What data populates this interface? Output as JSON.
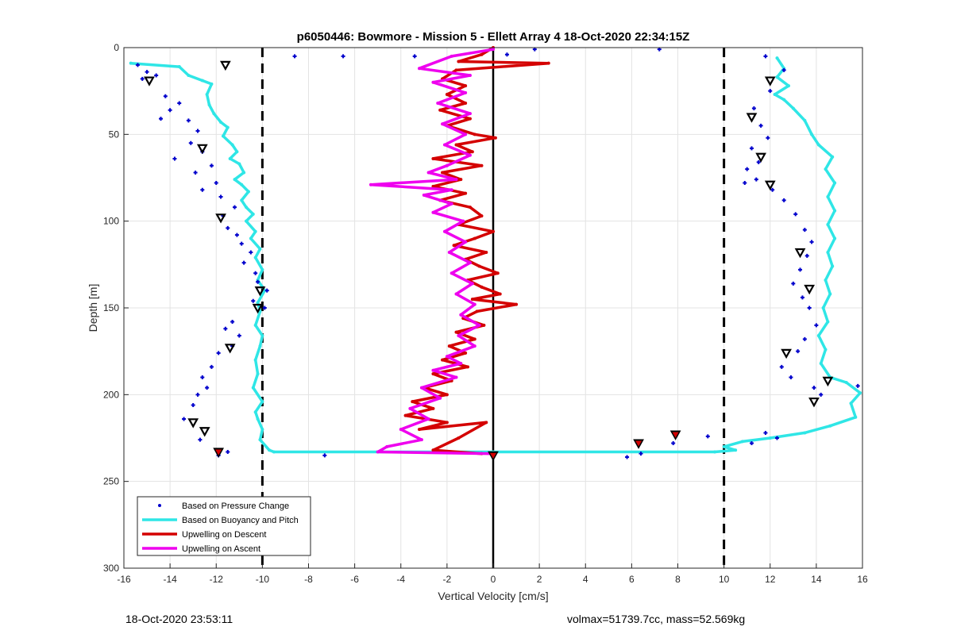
{
  "chart_data": {
    "type": "scatter",
    "title": "p6050446: Bowmore - Mission 5 - Ellett Array 4 18-Oct-2020 22:34:15Z",
    "xlabel": "Vertical Velocity [cm/s]",
    "ylabel": "Depth [m]",
    "xlim": [
      -16,
      16
    ],
    "ylim": [
      0,
      300
    ],
    "y_reversed": true,
    "xticks": [
      -16,
      -14,
      -12,
      -10,
      -8,
      -6,
      -4,
      -2,
      0,
      2,
      4,
      6,
      8,
      10,
      12,
      14,
      16
    ],
    "yticks": [
      0,
      50,
      100,
      150,
      200,
      250,
      300
    ],
    "grid": true,
    "legend_position": "bottom-left",
    "reference_lines": [
      {
        "x": -10,
        "style": "dashed",
        "color": "#000000"
      },
      {
        "x": 10,
        "style": "dashed",
        "color": "#000000"
      },
      {
        "x": 0,
        "style": "solid",
        "color": "#000000"
      }
    ],
    "series": [
      {
        "name": "Based on Pressure Change",
        "kind": "points",
        "color": "#0000cc",
        "points": [
          [
            -15.4,
            10
          ],
          [
            -15.0,
            14
          ],
          [
            -15.2,
            18
          ],
          [
            -14.6,
            16
          ],
          [
            -14.2,
            28
          ],
          [
            -13.6,
            32
          ],
          [
            -14.0,
            36
          ],
          [
            -13.2,
            42
          ],
          [
            -14.4,
            41
          ],
          [
            -12.8,
            48
          ],
          [
            -13.1,
            55
          ],
          [
            -12.6,
            60
          ],
          [
            -13.8,
            64
          ],
          [
            -12.2,
            68
          ],
          [
            -12.9,
            72
          ],
          [
            -12.0,
            78
          ],
          [
            -11.8,
            86
          ],
          [
            -12.6,
            82
          ],
          [
            -11.2,
            92
          ],
          [
            -11.7,
            97
          ],
          [
            -11.5,
            104
          ],
          [
            -11.1,
            108
          ],
          [
            -10.9,
            113
          ],
          [
            -10.5,
            118
          ],
          [
            -10.8,
            124
          ],
          [
            -10.3,
            130
          ],
          [
            -10.2,
            135
          ],
          [
            -9.8,
            140
          ],
          [
            -10.4,
            146
          ],
          [
            -9.9,
            150
          ],
          [
            -11.3,
            158
          ],
          [
            -11.6,
            162
          ],
          [
            -11.0,
            166
          ],
          [
            -11.3,
            172
          ],
          [
            -11.9,
            176
          ],
          [
            -12.2,
            184
          ],
          [
            -12.6,
            190
          ],
          [
            -12.4,
            196
          ],
          [
            -12.8,
            200
          ],
          [
            -13.0,
            206
          ],
          [
            -13.4,
            214
          ],
          [
            -12.7,
            226
          ],
          [
            -11.5,
            233
          ],
          [
            -11.9,
            235
          ],
          [
            -8.6,
            5
          ],
          [
            -6.5,
            5
          ],
          [
            -7.3,
            235
          ],
          [
            -3.4,
            5
          ],
          [
            0.6,
            4
          ],
          [
            1.8,
            1
          ],
          [
            12.6,
            13
          ],
          [
            11.8,
            5
          ],
          [
            12.0,
            25
          ],
          [
            11.3,
            35
          ],
          [
            11.6,
            45
          ],
          [
            11.9,
            52
          ],
          [
            11.2,
            58
          ],
          [
            11.5,
            66
          ],
          [
            11.0,
            70
          ],
          [
            11.4,
            76
          ],
          [
            10.9,
            78
          ],
          [
            12.1,
            82
          ],
          [
            12.6,
            88
          ],
          [
            13.1,
            96
          ],
          [
            13.5,
            105
          ],
          [
            13.8,
            112
          ],
          [
            13.6,
            120
          ],
          [
            13.3,
            128
          ],
          [
            13.0,
            136
          ],
          [
            13.4,
            144
          ],
          [
            13.7,
            150
          ],
          [
            14.0,
            160
          ],
          [
            13.5,
            168
          ],
          [
            13.2,
            175
          ],
          [
            12.5,
            184
          ],
          [
            12.9,
            190
          ],
          [
            13.9,
            196
          ],
          [
            14.2,
            200
          ],
          [
            15.8,
            195
          ],
          [
            11.8,
            222
          ],
          [
            12.3,
            225
          ],
          [
            11.2,
            228
          ],
          [
            9.3,
            224
          ],
          [
            5.8,
            236
          ],
          [
            6.4,
            234
          ],
          [
            7.8,
            228
          ],
          [
            7.2,
            1
          ]
        ]
      },
      {
        "name": "Based on Buoyancy and Pitch",
        "kind": "line",
        "color": "#2fe6e6",
        "points": [
          [
            -15.7,
            9
          ],
          [
            -13.6,
            11
          ],
          [
            -13.2,
            16
          ],
          [
            -12.6,
            19
          ],
          [
            -12.2,
            21
          ],
          [
            -12.4,
            27
          ],
          [
            -12.3,
            33
          ],
          [
            -12.1,
            38
          ],
          [
            -11.8,
            43
          ],
          [
            -11.5,
            46
          ],
          [
            -11.7,
            51
          ],
          [
            -11.3,
            56
          ],
          [
            -11.1,
            60
          ],
          [
            -11.4,
            64
          ],
          [
            -11.0,
            67
          ],
          [
            -10.8,
            72
          ],
          [
            -11.2,
            76
          ],
          [
            -10.9,
            79
          ],
          [
            -10.6,
            83
          ],
          [
            -10.9,
            88
          ],
          [
            -10.7,
            92
          ],
          [
            -10.4,
            96
          ],
          [
            -10.7,
            100
          ],
          [
            -10.3,
            106
          ],
          [
            -10.5,
            110
          ],
          [
            -10.1,
            116
          ],
          [
            -10.3,
            121
          ],
          [
            -10.0,
            128
          ],
          [
            -10.2,
            134
          ],
          [
            -9.9,
            140
          ],
          [
            -10.2,
            147
          ],
          [
            -10.1,
            152
          ],
          [
            -10.3,
            160
          ],
          [
            -10.0,
            166
          ],
          [
            -10.1,
            172
          ],
          [
            -10.3,
            180
          ],
          [
            -10.2,
            188
          ],
          [
            -10.4,
            196
          ],
          [
            -10.0,
            204
          ],
          [
            -10.3,
            210
          ],
          [
            -10.2,
            214
          ],
          [
            -10.0,
            220
          ],
          [
            -10.1,
            226
          ],
          [
            -9.7,
            232
          ],
          [
            -9.5,
            233
          ],
          [
            0,
            233
          ],
          [
            9.6,
            233
          ],
          [
            10.5,
            232
          ],
          [
            10.0,
            230
          ],
          [
            10.8,
            227
          ],
          [
            12.0,
            225
          ],
          [
            13.5,
            222
          ],
          [
            14.6,
            218
          ],
          [
            15.7,
            213
          ],
          [
            15.5,
            205
          ],
          [
            15.9,
            199
          ],
          [
            15.3,
            193
          ],
          [
            14.6,
            190
          ],
          [
            14.2,
            182
          ],
          [
            14.4,
            174
          ],
          [
            14.1,
            166
          ],
          [
            14.5,
            158
          ],
          [
            14.3,
            150
          ],
          [
            14.6,
            142
          ],
          [
            14.4,
            134
          ],
          [
            14.7,
            126
          ],
          [
            14.5,
            118
          ],
          [
            14.8,
            110
          ],
          [
            14.5,
            102
          ],
          [
            14.8,
            94
          ],
          [
            14.5,
            86
          ],
          [
            14.8,
            78
          ],
          [
            14.4,
            70
          ],
          [
            14.7,
            63
          ],
          [
            14.1,
            56
          ],
          [
            13.8,
            50
          ],
          [
            13.5,
            42
          ],
          [
            13.0,
            35
          ],
          [
            12.6,
            30
          ],
          [
            12.2,
            27
          ],
          [
            12.8,
            22
          ],
          [
            12.3,
            17
          ],
          [
            12.6,
            12
          ],
          [
            12.3,
            6
          ]
        ]
      },
      {
        "name": "Upwelling on Descent",
        "kind": "line",
        "color": "#d40000",
        "points": [
          [
            0,
            0
          ],
          [
            -0.5,
            4
          ],
          [
            -1.5,
            8
          ],
          [
            2.4,
            9
          ],
          [
            -1.6,
            13
          ],
          [
            -2.2,
            18
          ],
          [
            -1.2,
            22
          ],
          [
            -2.0,
            27
          ],
          [
            -1.2,
            32
          ],
          [
            -2.3,
            36
          ],
          [
            -1.0,
            41
          ],
          [
            -2.0,
            45
          ],
          [
            -0.8,
            50
          ],
          [
            0.1,
            52
          ],
          [
            -1.6,
            56
          ],
          [
            -0.9,
            60
          ],
          [
            -2.6,
            64
          ],
          [
            -0.5,
            68
          ],
          [
            -2.2,
            72
          ],
          [
            -1.4,
            76
          ],
          [
            -2.6,
            80
          ],
          [
            -1.2,
            84
          ],
          [
            -2.3,
            88
          ],
          [
            -1.0,
            92
          ],
          [
            -0.5,
            97
          ],
          [
            -1.5,
            102
          ],
          [
            0.0,
            106
          ],
          [
            -0.8,
            110
          ],
          [
            -1.7,
            114
          ],
          [
            -0.3,
            118
          ],
          [
            -1.2,
            122
          ],
          [
            -0.6,
            126
          ],
          [
            0.2,
            130
          ],
          [
            -1.1,
            134
          ],
          [
            -0.5,
            138
          ],
          [
            0.3,
            142
          ],
          [
            -0.9,
            145
          ],
          [
            1.0,
            148
          ],
          [
            -0.7,
            152
          ],
          [
            -1.3,
            156
          ],
          [
            -0.4,
            160
          ],
          [
            -1.6,
            164
          ],
          [
            -0.8,
            168
          ],
          [
            -1.9,
            172
          ],
          [
            -1.2,
            176
          ],
          [
            -2.2,
            180
          ],
          [
            -1.1,
            184
          ],
          [
            -2.6,
            188
          ],
          [
            -1.8,
            192
          ],
          [
            -3.0,
            196
          ],
          [
            -2.0,
            200
          ],
          [
            -3.5,
            204
          ],
          [
            -2.6,
            208
          ],
          [
            -3.8,
            212
          ],
          [
            -2.0,
            216
          ],
          [
            -3.2,
            220
          ],
          [
            -0.3,
            216
          ],
          [
            -1.5,
            225
          ],
          [
            -2.6,
            232
          ],
          [
            -0.5,
            234
          ]
        ]
      },
      {
        "name": "Upwelling on Ascent",
        "kind": "line",
        "color": "#ee00ee",
        "points": [
          [
            0,
            1
          ],
          [
            -1.8,
            5
          ],
          [
            -3.2,
            12
          ],
          [
            -1.0,
            16
          ],
          [
            -2.6,
            20
          ],
          [
            -1.2,
            26
          ],
          [
            -2.4,
            32
          ],
          [
            -1.0,
            38
          ],
          [
            -2.2,
            44
          ],
          [
            -1.2,
            50
          ],
          [
            -2.1,
            56
          ],
          [
            -1.0,
            62
          ],
          [
            -2.0,
            68
          ],
          [
            -2.8,
            72
          ],
          [
            -1.6,
            76
          ],
          [
            -5.3,
            79
          ],
          [
            -1.8,
            82
          ],
          [
            -3.0,
            85
          ],
          [
            -1.8,
            90
          ],
          [
            -2.6,
            95
          ],
          [
            -1.3,
            100
          ],
          [
            -2.1,
            106
          ],
          [
            -1.2,
            112
          ],
          [
            -1.9,
            118
          ],
          [
            -1.0,
            124
          ],
          [
            -1.8,
            130
          ],
          [
            -0.9,
            136
          ],
          [
            -1.6,
            142
          ],
          [
            -0.8,
            148
          ],
          [
            -1.4,
            154
          ],
          [
            -0.6,
            160
          ],
          [
            -1.5,
            166
          ],
          [
            -0.8,
            172
          ],
          [
            -2.0,
            178
          ],
          [
            -1.4,
            182
          ],
          [
            -2.6,
            186
          ],
          [
            -1.6,
            190
          ],
          [
            -3.1,
            196
          ],
          [
            -2.3,
            202
          ],
          [
            -3.6,
            208
          ],
          [
            -2.8,
            214
          ],
          [
            -4.0,
            220
          ],
          [
            -3.1,
            226
          ],
          [
            -4.6,
            230
          ],
          [
            -5.0,
            233
          ],
          [
            0,
            234
          ]
        ]
      },
      {
        "name": "",
        "kind": "markers",
        "color": "#000000",
        "points": [
          [
            -11.6,
            10
          ],
          [
            -14.9,
            19
          ],
          [
            -12.6,
            58
          ],
          [
            -11.8,
            98
          ],
          [
            -10.1,
            140
          ],
          [
            -10.2,
            150
          ],
          [
            -11.4,
            173
          ],
          [
            -13.0,
            216
          ],
          [
            -12.5,
            221
          ],
          [
            -11.9,
            233
          ],
          [
            12.0,
            19
          ],
          [
            11.2,
            40
          ],
          [
            11.6,
            63
          ],
          [
            12.0,
            79
          ],
          [
            13.3,
            118
          ],
          [
            13.7,
            139
          ],
          [
            12.7,
            176
          ],
          [
            14.5,
            192
          ],
          [
            13.9,
            204
          ],
          [
            6.3,
            228
          ],
          [
            7.9,
            223
          ],
          [
            0,
            235
          ]
        ]
      }
    ]
  },
  "footer": {
    "timestamp": "18-Oct-2020 23:53:11",
    "stats": "volmax=51739.7cc, mass=52.569kg"
  }
}
